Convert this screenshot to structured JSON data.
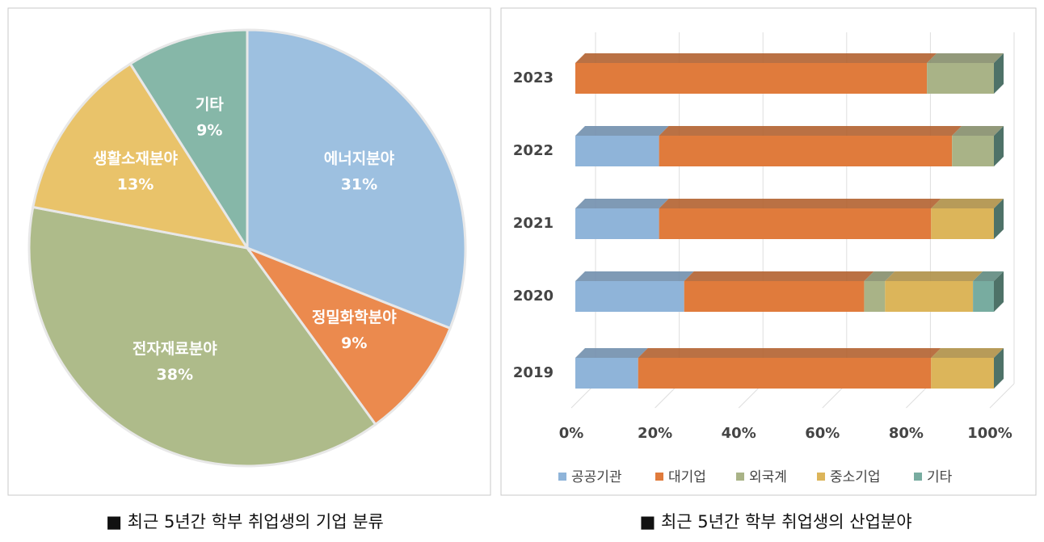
{
  "chart_data": [
    {
      "type": "pie",
      "caption": "■ 최근 5년간 학부 취업생의 기업 분류",
      "categories": [
        "에너지분야",
        "정밀화학분야",
        "전자재료분야",
        "생활소재분야",
        "기타"
      ],
      "values": [
        31,
        9,
        38,
        13,
        9
      ],
      "value_labels": [
        "31%",
        "9%",
        "38%",
        "13%",
        "9%"
      ],
      "colors": [
        "#9dc0e0",
        "#eb8a4e",
        "#aebb8a",
        "#e9c36a",
        "#86b7a8"
      ]
    },
    {
      "type": "stacked-bar-horizontal",
      "caption": "■ 최근 5년간 학부 취업생의 산업분야",
      "categories": [
        "2023",
        "2022",
        "2021",
        "2020",
        "2019"
      ],
      "series": [
        {
          "name": "공공기관",
          "color": "#8fb4d9",
          "values": [
            0,
            20,
            20,
            26,
            15
          ]
        },
        {
          "name": "대기업",
          "color": "#e07b3c",
          "values": [
            84,
            70,
            65,
            43,
            70
          ]
        },
        {
          "name": "외국계",
          "color": "#a9b387",
          "values": [
            16,
            10,
            0,
            5,
            0
          ]
        },
        {
          "name": "중소기업",
          "color": "#dcb55a",
          "values": [
            0,
            0,
            15,
            21,
            15
          ]
        },
        {
          "name": "기타",
          "color": "#78aca0",
          "values": [
            0,
            0,
            0,
            5,
            0
          ]
        }
      ],
      "xlim": [
        0,
        100
      ],
      "xticks": [
        {
          "value": 0,
          "label": "0%"
        },
        {
          "value": 20,
          "label": "20%"
        },
        {
          "value": 40,
          "label": "40%"
        },
        {
          "value": 60,
          "label": "60%"
        },
        {
          "value": 80,
          "label": "80%"
        },
        {
          "value": 100,
          "label": "100%"
        }
      ],
      "grid": true,
      "legend": "bottom"
    }
  ]
}
